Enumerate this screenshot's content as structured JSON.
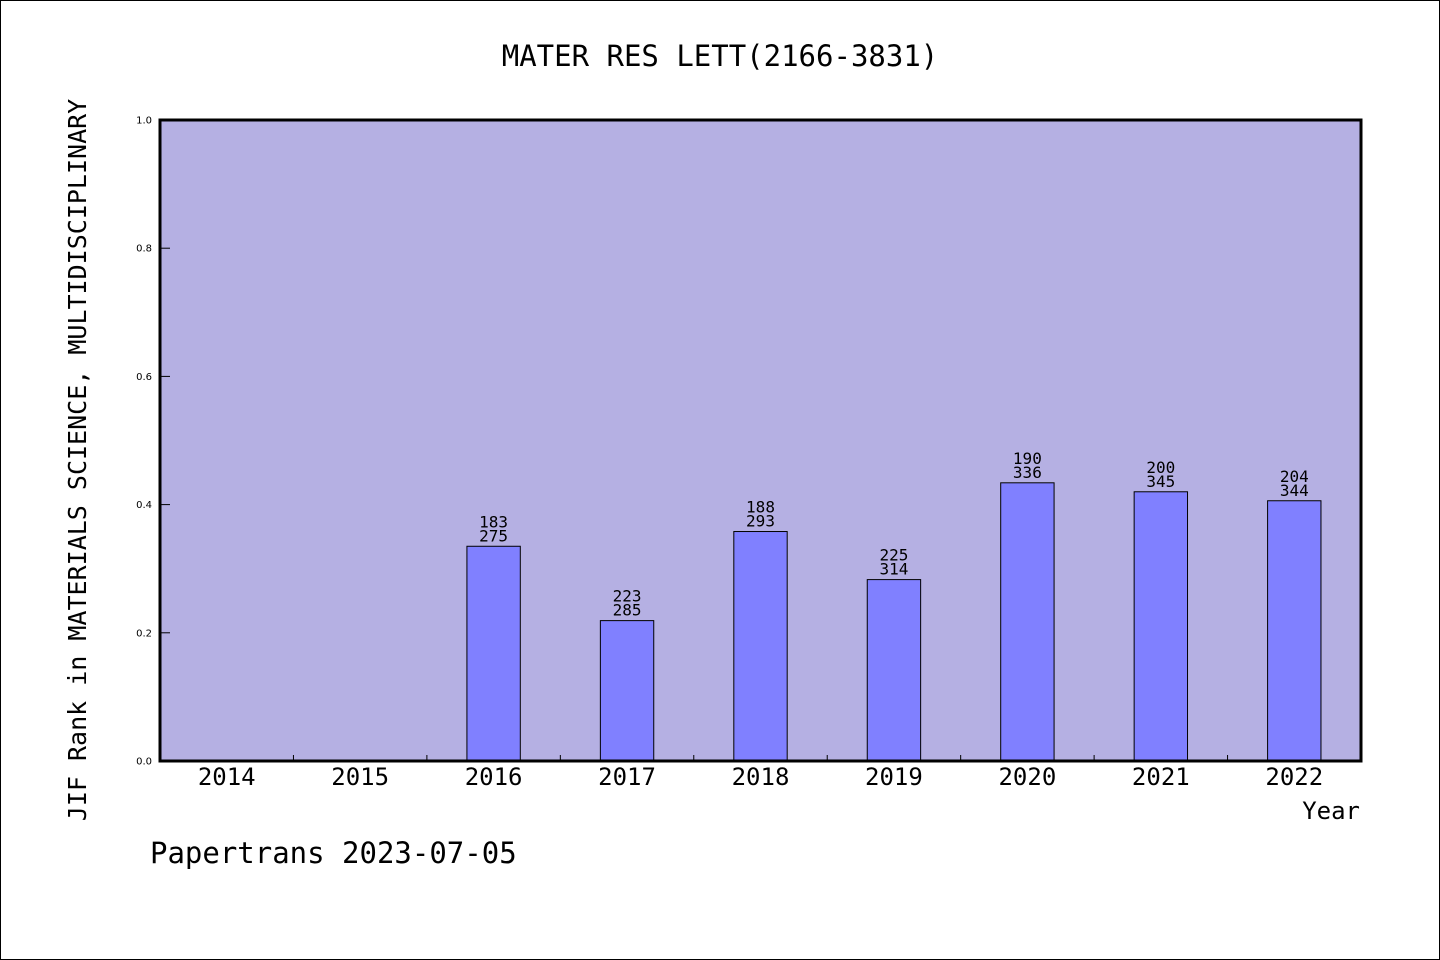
{
  "title": "MATER RES LETT(2166-3831)",
  "footer": "Papertrans 2023-07-05",
  "colors": {
    "plot_background": "#b5b0e3",
    "bar_fill": "#8080ff",
    "bar_stroke": "#000000",
    "axis": "#000000"
  },
  "chart_data": {
    "type": "bar",
    "title": "MATER RES LETT(2166-3831)",
    "xlabel": "Year",
    "ylabel": "JIF Rank in MATERIALS SCIENCE, MULTIDISCIPLINARY",
    "ylim": [
      0,
      1.0
    ],
    "yticks": [
      "0.0",
      "0.2",
      "0.4",
      "0.6",
      "0.8",
      "1.0"
    ],
    "grid": false,
    "categories": [
      "2014",
      "2015",
      "2016",
      "2017",
      "2018",
      "2019",
      "2020",
      "2021",
      "2022"
    ],
    "values": [
      null,
      null,
      0.335,
      0.219,
      0.358,
      0.283,
      0.434,
      0.42,
      0.406
    ],
    "rank_labels": [
      null,
      null,
      {
        "top": "183",
        "bottom": "275"
      },
      {
        "top": "223",
        "bottom": "285"
      },
      {
        "top": "188",
        "bottom": "293"
      },
      {
        "top": "225",
        "bottom": "314"
      },
      {
        "top": "190",
        "bottom": "336"
      },
      {
        "top": "200",
        "bottom": "345"
      },
      {
        "top": "204",
        "bottom": "344"
      }
    ]
  }
}
